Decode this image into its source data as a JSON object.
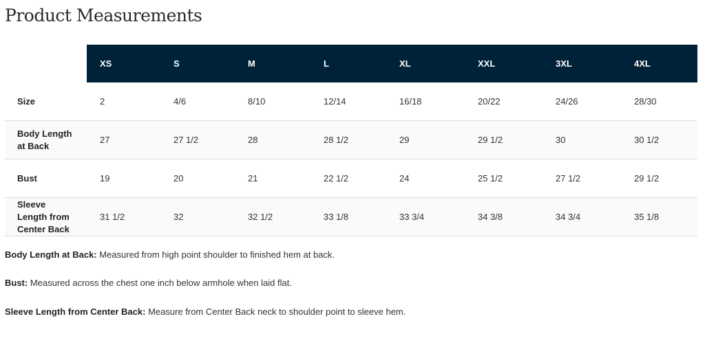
{
  "title": "Product Measurements",
  "table": {
    "columns": [
      "XS",
      "S",
      "M",
      "L",
      "XL",
      "XXL",
      "3XL",
      "4XL"
    ],
    "rows": [
      {
        "label": "Size",
        "values": [
          "2",
          "4/6",
          "8/10",
          "12/14",
          "16/18",
          "20/22",
          "24/26",
          "28/30"
        ]
      },
      {
        "label": "Body Length at Back",
        "values": [
          "27",
          "27 1/2",
          "28",
          "28 1/2",
          "29",
          "29 1/2",
          "30",
          "30 1/2"
        ]
      },
      {
        "label": "Bust",
        "values": [
          "19",
          "20",
          "21",
          "22 1/2",
          "24",
          "25 1/2",
          "27 1/2",
          "29 1/2"
        ]
      },
      {
        "label": "Sleeve Length from Center Back",
        "values": [
          "31 1/2",
          "32",
          "32 1/2",
          "33 1/8",
          "33 3/4",
          "34 3/8",
          "34 3/4",
          "35 1/8"
        ]
      }
    ]
  },
  "notes": [
    {
      "term": "Body Length at Back:",
      "text": " Measured from high point shoulder to finished hem at back."
    },
    {
      "term": "Bust:",
      "text": " Measured across the chest one inch below armhole when laid flat."
    },
    {
      "term": "Sleeve Length from Center Back:",
      "text": " Measure from Center Back neck to shoulder point to sleeve hem."
    }
  ],
  "colors": {
    "header_bg": "#002238",
    "header_text": "#ffffff",
    "alt_row": "#fafafa"
  }
}
